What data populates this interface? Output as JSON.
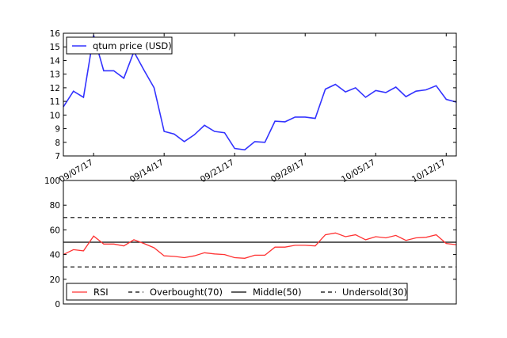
{
  "chart_data": [
    {
      "type": "line",
      "x_tick_labels": [
        "09/07/17",
        "09/14/17",
        "09/21/17",
        "09/28/17",
        "10/05/17",
        "10/12/17"
      ],
      "x_tick_index": [
        3,
        10,
        17,
        24,
        31,
        38
      ],
      "ylim": [
        7,
        16
      ],
      "yticks": [
        7,
        8,
        9,
        10,
        11,
        12,
        13,
        14,
        15,
        16
      ],
      "legend_position": "top-left",
      "series": [
        {
          "name": "qtum price (USD)",
          "color": "#3333ff",
          "values": [
            10.6,
            11.75,
            11.3,
            15.85,
            13.25,
            13.25,
            12.7,
            14.65,
            13.3,
            12.0,
            8.8,
            8.6,
            8.05,
            8.55,
            9.25,
            8.8,
            8.7,
            7.55,
            7.45,
            8.05,
            8.0,
            9.55,
            9.5,
            9.85,
            9.85,
            9.75,
            11.9,
            12.25,
            11.7,
            12.0,
            11.3,
            11.8,
            11.65,
            12.05,
            11.35,
            11.75,
            11.85,
            12.15,
            11.15,
            10.95
          ]
        }
      ]
    },
    {
      "type": "line",
      "ylim": [
        0,
        100
      ],
      "yticks": [
        0,
        20,
        40,
        60,
        80,
        100
      ],
      "legend_position": "bottom",
      "series": [
        {
          "name": "RSI",
          "color": "#ff3333",
          "style": "solid",
          "values": [
            40,
            44,
            43,
            55,
            48.5,
            48.5,
            47,
            52,
            49,
            45.5,
            39,
            38.5,
            37.5,
            39,
            41.5,
            40.5,
            40,
            37.5,
            37,
            39.5,
            39.5,
            46,
            46,
            47.5,
            47.5,
            47,
            56,
            57.5,
            54.5,
            56,
            52,
            54.5,
            53.5,
            55.5,
            51.5,
            53.5,
            54,
            56,
            49,
            48
          ]
        },
        {
          "name": "Overbought(70)",
          "color": "#000000",
          "style": "dashed",
          "values": [
            70
          ]
        },
        {
          "name": "Middle(50)",
          "color": "#000000",
          "style": "solid",
          "values": [
            50
          ]
        },
        {
          "name": "Undersold(30)",
          "color": "#000000",
          "style": "dashed",
          "values": [
            30
          ]
        }
      ]
    }
  ]
}
